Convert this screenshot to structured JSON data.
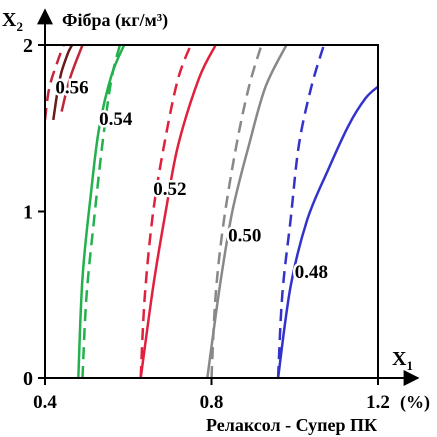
{
  "chart_data": {
    "type": "line",
    "title": "",
    "y_symbol": "X",
    "y_symbol_sub": "2",
    "y_name": "Фібра (кг/м³)",
    "x_symbol": "X",
    "x_symbol_sub": "1",
    "x_unit": "(%)",
    "x_name": "Релаксол - Супер ПК",
    "xlim": [
      0.4,
      1.2
    ],
    "ylim": [
      0,
      2
    ],
    "x_ticks": [
      "0.4",
      "0.8",
      "1.2"
    ],
    "y_ticks": [
      "0",
      "1",
      "2"
    ],
    "grid": false,
    "series": [
      {
        "label": "0.56",
        "color": "#6b1a1a",
        "style": "solid",
        "points": [
          [
            0.42,
            1.55
          ],
          [
            0.43,
            1.72
          ],
          [
            0.44,
            1.84
          ],
          [
            0.455,
            1.95
          ],
          [
            0.465,
            2.0
          ]
        ]
      },
      {
        "label": "",
        "color": "#c0273a",
        "style": "dashed",
        "points": [
          [
            0.4,
            1.55
          ],
          [
            0.41,
            1.74
          ],
          [
            0.43,
            1.9
          ],
          [
            0.445,
            2.0
          ]
        ]
      },
      {
        "label": "",
        "color": "#c0273a",
        "style": "solid",
        "points": [
          [
            0.44,
            1.6
          ],
          [
            0.46,
            1.8
          ],
          [
            0.49,
            2.0
          ]
        ]
      },
      {
        "label": "",
        "color": "#22b14c",
        "style": "dashed",
        "points": [
          [
            0.49,
            0.0
          ],
          [
            0.5,
            0.5
          ],
          [
            0.52,
            1.0
          ],
          [
            0.54,
            1.45
          ],
          [
            0.56,
            1.8
          ],
          [
            0.58,
            2.0
          ]
        ]
      },
      {
        "label": "0.54",
        "color": "#22b14c",
        "style": "solid",
        "points": [
          [
            0.48,
            0.0
          ],
          [
            0.49,
            0.6
          ],
          [
            0.51,
            1.1
          ],
          [
            0.53,
            1.5
          ],
          [
            0.56,
            1.82
          ],
          [
            0.59,
            2.0
          ]
        ]
      },
      {
        "label": "",
        "color": "#e0203c",
        "style": "dashed",
        "points": [
          [
            0.63,
            0.0
          ],
          [
            0.64,
            0.5
          ],
          [
            0.66,
            1.0
          ],
          [
            0.69,
            1.45
          ],
          [
            0.72,
            1.8
          ],
          [
            0.75,
            2.0
          ]
        ]
      },
      {
        "label": "0.52",
        "color": "#e0203c",
        "style": "solid",
        "points": [
          [
            0.63,
            0.0
          ],
          [
            0.66,
            0.55
          ],
          [
            0.69,
            1.0
          ],
          [
            0.72,
            1.4
          ],
          [
            0.77,
            1.8
          ],
          [
            0.81,
            2.0
          ]
        ]
      },
      {
        "label": "",
        "color": "#888888",
        "style": "dashed",
        "points": [
          [
            0.8,
            0.0
          ],
          [
            0.81,
            0.5
          ],
          [
            0.83,
            0.95
          ],
          [
            0.86,
            1.4
          ],
          [
            0.89,
            1.75
          ],
          [
            0.92,
            2.0
          ]
        ]
      },
      {
        "label": "0.50",
        "color": "#888888",
        "style": "solid",
        "points": [
          [
            0.79,
            0.0
          ],
          [
            0.82,
            0.55
          ],
          [
            0.85,
            1.0
          ],
          [
            0.89,
            1.4
          ],
          [
            0.93,
            1.75
          ],
          [
            0.98,
            2.0
          ]
        ]
      },
      {
        "label": "",
        "color": "#3333cc",
        "style": "dashed",
        "points": [
          [
            0.96,
            0.0
          ],
          [
            0.97,
            0.5
          ],
          [
            0.99,
            0.95
          ],
          [
            1.01,
            1.4
          ],
          [
            1.04,
            1.75
          ],
          [
            1.07,
            2.0
          ]
        ]
      },
      {
        "label": "0.48",
        "color": "#3333cc",
        "style": "solid",
        "points": [
          [
            0.96,
            0.0
          ],
          [
            0.99,
            0.55
          ],
          [
            1.03,
            0.95
          ],
          [
            1.08,
            1.25
          ],
          [
            1.13,
            1.52
          ],
          [
            1.17,
            1.68
          ],
          [
            1.2,
            1.75
          ]
        ]
      }
    ]
  }
}
